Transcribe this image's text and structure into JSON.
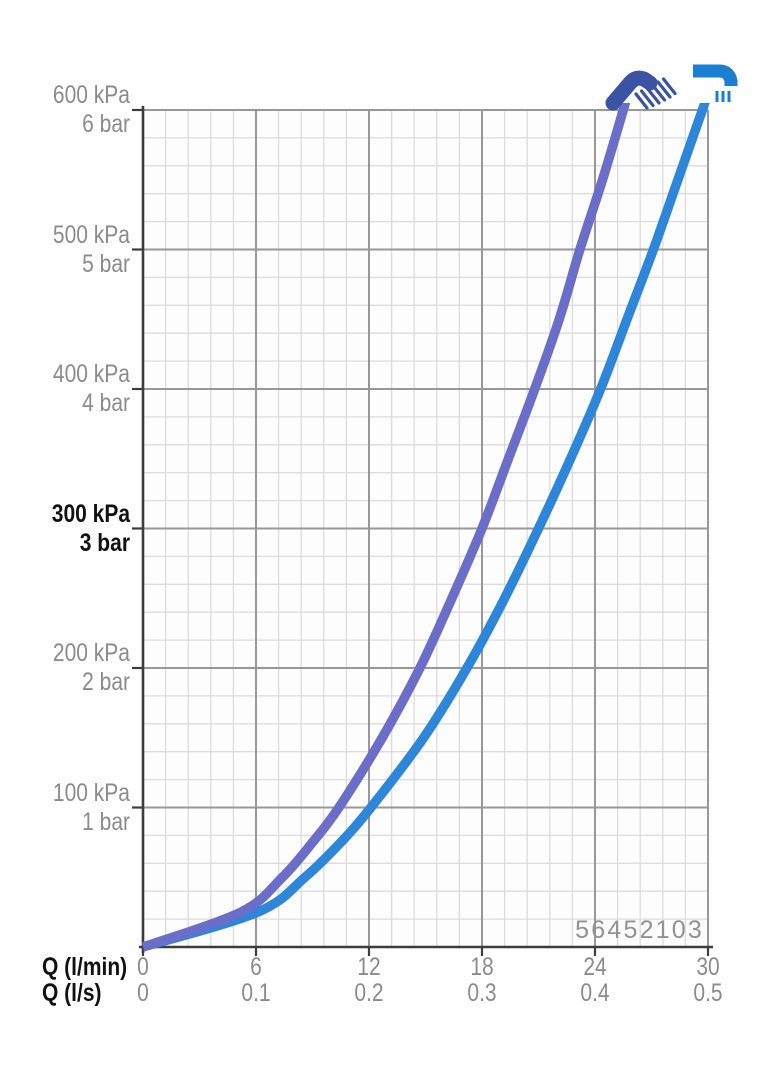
{
  "chart_data": {
    "type": "line",
    "title": "",
    "product_number": "56452103",
    "x_axis": {
      "rows": [
        {
          "label": "Q (l/min)",
          "ticks": [
            "0",
            "6",
            "12",
            "18",
            "24",
            "30"
          ]
        },
        {
          "label": "Q (l/s)",
          "ticks": [
            "0",
            "0.1",
            "0.2",
            "0.3",
            "0.4",
            "0.5"
          ]
        }
      ],
      "range_lpm": [
        0,
        30
      ],
      "major_step_lpm": 6,
      "minor_step_lpm": 1.2
    },
    "y_axis": {
      "range_kpa": [
        0,
        600
      ],
      "major_step_kpa": 100,
      "minor_step_kpa": 20,
      "ticks": [
        {
          "value": 600,
          "kpa": "600 kPa",
          "bar": "6 bar",
          "bold": false
        },
        {
          "value": 500,
          "kpa": "500 kPa",
          "bar": "5 bar",
          "bold": false
        },
        {
          "value": 400,
          "kpa": "400 kPa",
          "bar": "4 bar",
          "bold": false
        },
        {
          "value": 300,
          "kpa": "300 kPa",
          "bar": "3 bar",
          "bold": true
        },
        {
          "value": 200,
          "kpa": "200 kPa",
          "bar": "2 bar",
          "bold": false
        },
        {
          "value": 100,
          "kpa": "100 kPa",
          "bar": "1 bar",
          "bold": false
        }
      ]
    },
    "series": [
      {
        "name": "hand-shower",
        "icon": "hand-shower-icon",
        "color": "#6a6ec8",
        "pressure_kpa": [
          0,
          25,
          50,
          75,
          100,
          150,
          200,
          250,
          300,
          350,
          400,
          450,
          500,
          550,
          600
        ],
        "flow_lpm": [
          0,
          5.2,
          7.4,
          9.0,
          10.4,
          12.7,
          14.7,
          16.4,
          18.0,
          19.4,
          20.8,
          22.1,
          23.2,
          24.4,
          25.5
        ]
      },
      {
        "name": "spout",
        "icon": "spout-icon",
        "color": "#2d86da",
        "pressure_kpa": [
          0,
          25,
          50,
          75,
          100,
          150,
          200,
          250,
          300,
          350,
          400,
          450,
          500,
          550,
          600
        ],
        "flow_lpm": [
          0,
          6.1,
          8.6,
          10.5,
          12.1,
          14.9,
          17.2,
          19.2,
          21.0,
          22.7,
          24.3,
          25.7,
          27.1,
          28.4,
          29.7
        ]
      }
    ],
    "grid": {
      "visible": true,
      "legend_position": "top-right-icons"
    },
    "colors": {
      "curve_hand_shower": "#6a6ec8",
      "curve_spout": "#2d86da",
      "hand_shower_icon": "#3a53a3",
      "spout_icon": "#1b7ed2",
      "grid_minor": "#dcdcdc",
      "grid_major": "#989898",
      "axis": "#3d3d3d",
      "label_gray": "#8b8b8b",
      "label_black": "#111111",
      "plot_background": "#fdfdfd"
    }
  }
}
